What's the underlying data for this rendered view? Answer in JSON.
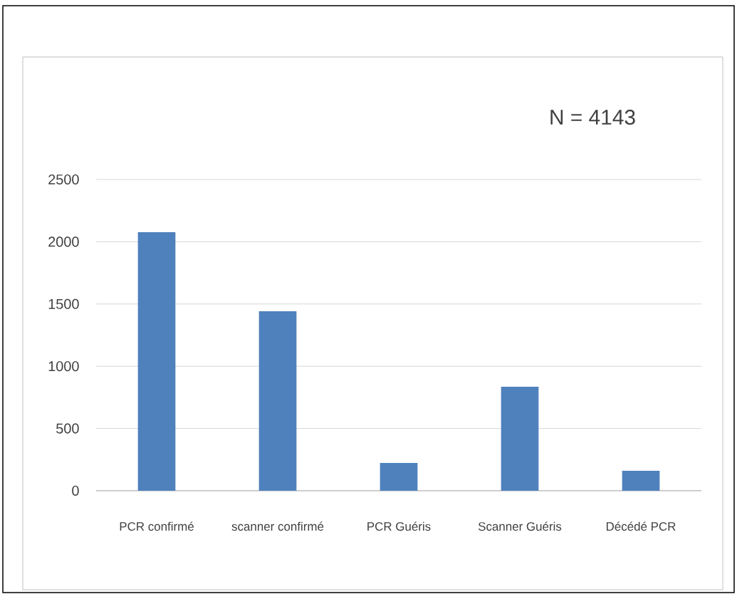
{
  "chart_data": {
    "type": "bar",
    "categories": [
      "PCR confirmé",
      "scanner confirmé",
      "PCR Guéris",
      "Scanner Guéris",
      "Décédé PCR"
    ],
    "values": [
      2077,
      1442,
      223,
      835,
      160
    ],
    "color": "#4f81bd",
    "ylim": [
      0,
      2500
    ],
    "yticks": [
      0,
      500,
      1000,
      1500,
      2000,
      2500
    ],
    "grid": "y",
    "annotations": [
      "N = 4143"
    ]
  }
}
